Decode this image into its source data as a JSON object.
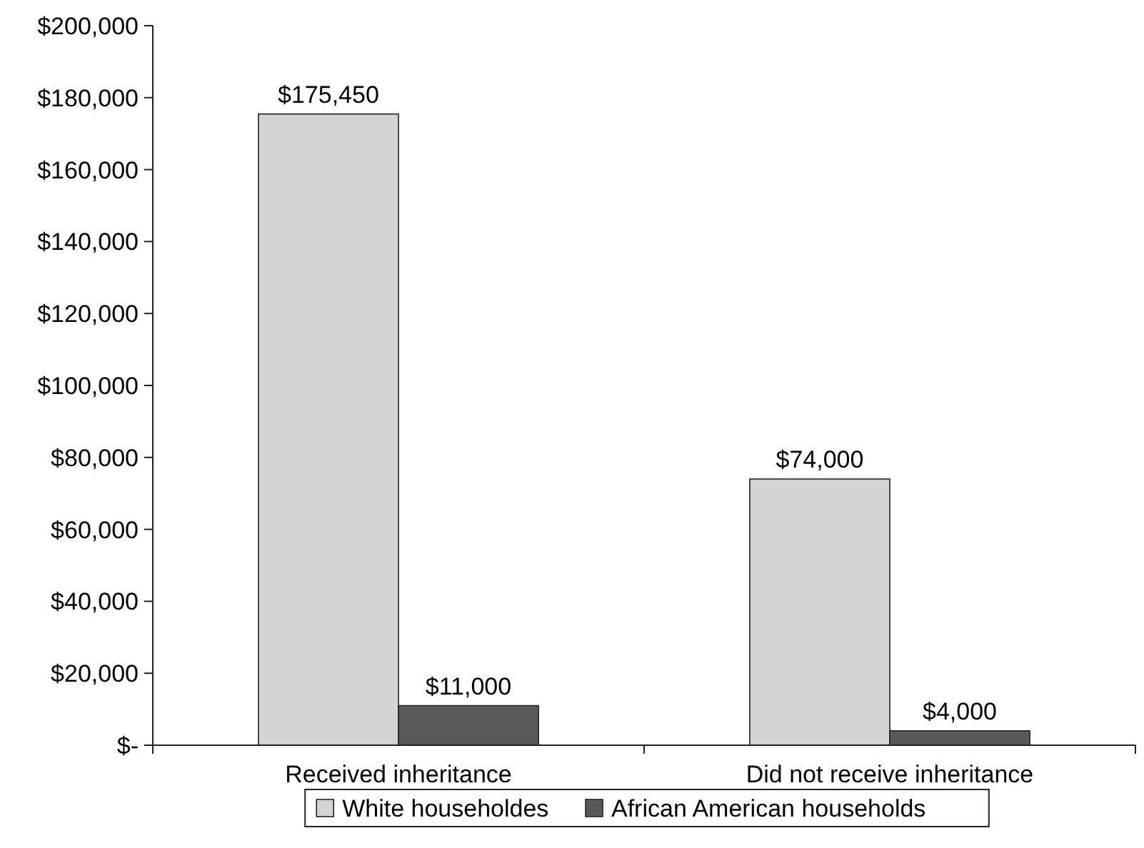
{
  "chart_data": {
    "type": "bar",
    "categories": [
      "Received inheritance",
      "Did not receive inheritance"
    ],
    "series": [
      {
        "name": "White householdes",
        "color": "#d4d4d4",
        "values": [
          175450,
          74000
        ],
        "value_labels": [
          "$175,450",
          "$74,000"
        ]
      },
      {
        "name": "African American households",
        "color": "#595959",
        "values": [
          11000,
          4000
        ],
        "value_labels": [
          "$11,000",
          "$4,000"
        ]
      }
    ],
    "ylim": [
      0,
      200000
    ],
    "yticks": [
      {
        "value": 0,
        "label": "$-"
      },
      {
        "value": 20000,
        "label": "$20,000"
      },
      {
        "value": 40000,
        "label": "$40,000"
      },
      {
        "value": 60000,
        "label": "$60,000"
      },
      {
        "value": 80000,
        "label": "$80,000"
      },
      {
        "value": 100000,
        "label": "$100,000"
      },
      {
        "value": 120000,
        "label": "$120,000"
      },
      {
        "value": 140000,
        "label": "$140,000"
      },
      {
        "value": 160000,
        "label": "$160,000"
      },
      {
        "value": 180000,
        "label": "$180,000"
      },
      {
        "value": 200000,
        "label": "$200,000"
      }
    ],
    "grid": false,
    "legend": "bottom"
  }
}
